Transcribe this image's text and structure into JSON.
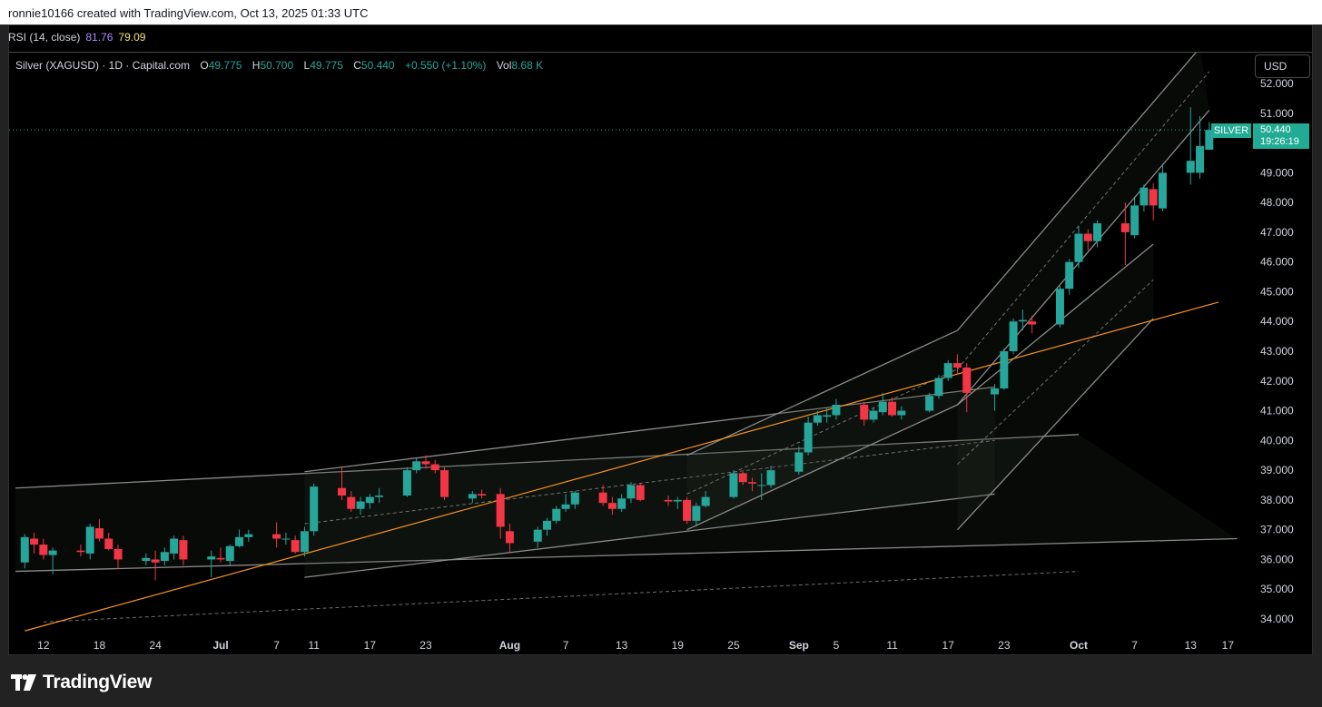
{
  "header": {
    "credit": "ronnie10166 created with TradingView.com, Oct 13, 2025 01:33 UTC"
  },
  "rsi": {
    "label": "RSI (14, close)",
    "value1": "81.76",
    "value2": "79.09",
    "value1_color": "#b388ff",
    "value2_color": "#f7e36b"
  },
  "legend": {
    "symbol": "Silver (XAGUSD) · 1D · Capital.com",
    "o_label": "O",
    "o_value": "49.775",
    "h_label": "H",
    "h_value": "50.700",
    "l_label": "L",
    "l_value": "49.775",
    "c_label": "C",
    "c_value": "50.440",
    "change": "+0.550 (+1.10%)",
    "vol_label": "Vol",
    "vol_value": "8.68 K"
  },
  "currency_button": "USD",
  "price_tag": {
    "name": "SILVER",
    "price": "50.440",
    "countdown": "19:26:19",
    "color": "#22ab94"
  },
  "footer": {
    "brand": "TradingView"
  },
  "colors": {
    "up": "#26a69a",
    "down": "#f23645",
    "trendline": "#f7931a",
    "channel": "#8a8a8a",
    "background": "#000000"
  },
  "chart_data": {
    "type": "candlestick",
    "title": "Silver (XAGUSD) · 1D · Capital.com",
    "ylim": [
      33.6,
      53.1
    ],
    "y_ticks": [
      "52.000",
      "51.000",
      "50.000",
      "49.000",
      "48.000",
      "47.000",
      "46.000",
      "45.000",
      "44.000",
      "43.000",
      "42.000",
      "41.000",
      "40.000",
      "39.000",
      "38.000",
      "37.000",
      "36.000",
      "35.000",
      "34.000"
    ],
    "x_ticks": [
      "12",
      "18",
      "24",
      "Jul",
      "7",
      "11",
      "17",
      "23",
      "Aug",
      "7",
      "13",
      "19",
      "25",
      "Sep",
      "5",
      "11",
      "17",
      "23",
      "Oct",
      "7",
      "13",
      "17"
    ],
    "x_tick_dates": [
      "2025-06-12",
      "2025-06-18",
      "2025-06-24",
      "2025-07-01",
      "2025-07-07",
      "2025-07-11",
      "2025-07-17",
      "2025-07-23",
      "2025-08-01",
      "2025-08-07",
      "2025-08-13",
      "2025-08-19",
      "2025-08-25",
      "2025-09-01",
      "2025-09-05",
      "2025-09-11",
      "2025-09-17",
      "2025-09-23",
      "2025-10-01",
      "2025-10-07",
      "2025-10-13",
      "2025-10-17"
    ],
    "candles": [
      {
        "date": "2025-06-10",
        "o": 35.9,
        "h": 36.85,
        "l": 35.7,
        "c": 36.75
      },
      {
        "date": "2025-06-11",
        "o": 36.7,
        "h": 36.9,
        "l": 36.2,
        "c": 36.5
      },
      {
        "date": "2025-06-12",
        "o": 36.5,
        "h": 36.7,
        "l": 36.0,
        "c": 36.15
      },
      {
        "date": "2025-06-13",
        "o": 36.15,
        "h": 36.4,
        "l": 35.5,
        "c": 36.3
      },
      {
        "date": "2025-06-16",
        "o": 36.3,
        "h": 36.5,
        "l": 36.1,
        "c": 36.25
      },
      {
        "date": "2025-06-17",
        "o": 36.2,
        "h": 37.2,
        "l": 36.0,
        "c": 37.1
      },
      {
        "date": "2025-06-18",
        "o": 37.05,
        "h": 37.35,
        "l": 36.6,
        "c": 36.7
      },
      {
        "date": "2025-06-19",
        "o": 36.7,
        "h": 36.9,
        "l": 36.3,
        "c": 36.35
      },
      {
        "date": "2025-06-20",
        "o": 36.35,
        "h": 36.5,
        "l": 35.7,
        "c": 36.0
      },
      {
        "date": "2025-06-23",
        "o": 35.95,
        "h": 36.2,
        "l": 35.8,
        "c": 36.05
      },
      {
        "date": "2025-06-24",
        "o": 36.0,
        "h": 36.3,
        "l": 35.3,
        "c": 35.9
      },
      {
        "date": "2025-06-25",
        "o": 35.95,
        "h": 36.4,
        "l": 35.8,
        "c": 36.25
      },
      {
        "date": "2025-06-26",
        "o": 36.2,
        "h": 36.8,
        "l": 36.0,
        "c": 36.7
      },
      {
        "date": "2025-06-27",
        "o": 36.65,
        "h": 36.8,
        "l": 35.8,
        "c": 36.0
      },
      {
        "date": "2025-06-30",
        "o": 36.0,
        "h": 36.3,
        "l": 35.4,
        "c": 36.1
      },
      {
        "date": "2025-07-01",
        "o": 36.05,
        "h": 36.4,
        "l": 35.9,
        "c": 36.0
      },
      {
        "date": "2025-07-02",
        "o": 35.95,
        "h": 36.5,
        "l": 35.8,
        "c": 36.45
      },
      {
        "date": "2025-07-03",
        "o": 36.45,
        "h": 37.0,
        "l": 36.4,
        "c": 36.75
      },
      {
        "date": "2025-07-04",
        "o": 36.75,
        "h": 37.0,
        "l": 36.6,
        "c": 36.85
      },
      {
        "date": "2025-07-07",
        "o": 36.85,
        "h": 37.25,
        "l": 36.4,
        "c": 36.7
      },
      {
        "date": "2025-07-08",
        "o": 36.7,
        "h": 36.9,
        "l": 36.5,
        "c": 36.7
      },
      {
        "date": "2025-07-09",
        "o": 36.65,
        "h": 36.8,
        "l": 36.2,
        "c": 36.25
      },
      {
        "date": "2025-07-10",
        "o": 36.25,
        "h": 37.1,
        "l": 36.1,
        "c": 36.95
      },
      {
        "date": "2025-07-11",
        "o": 36.95,
        "h": 38.55,
        "l": 36.8,
        "c": 38.45
      },
      {
        "date": "2025-07-14",
        "o": 38.4,
        "h": 39.1,
        "l": 38.0,
        "c": 38.15
      },
      {
        "date": "2025-07-15",
        "o": 38.1,
        "h": 38.3,
        "l": 37.6,
        "c": 37.7
      },
      {
        "date": "2025-07-16",
        "o": 37.7,
        "h": 38.1,
        "l": 37.5,
        "c": 37.95
      },
      {
        "date": "2025-07-17",
        "o": 37.9,
        "h": 38.2,
        "l": 37.7,
        "c": 38.1
      },
      {
        "date": "2025-07-18",
        "o": 38.1,
        "h": 38.4,
        "l": 37.9,
        "c": 38.15
      },
      {
        "date": "2025-07-21",
        "o": 38.15,
        "h": 39.1,
        "l": 38.1,
        "c": 39.0
      },
      {
        "date": "2025-07-22",
        "o": 39.0,
        "h": 39.4,
        "l": 38.9,
        "c": 39.3
      },
      {
        "date": "2025-07-23",
        "o": 39.3,
        "h": 39.5,
        "l": 39.05,
        "c": 39.2
      },
      {
        "date": "2025-07-24",
        "o": 39.2,
        "h": 39.35,
        "l": 38.9,
        "c": 39.0
      },
      {
        "date": "2025-07-25",
        "o": 39.0,
        "h": 39.1,
        "l": 38.0,
        "c": 38.1
      },
      {
        "date": "2025-07-28",
        "o": 38.05,
        "h": 38.3,
        "l": 37.9,
        "c": 38.2
      },
      {
        "date": "2025-07-29",
        "o": 38.2,
        "h": 38.35,
        "l": 38.05,
        "c": 38.15
      },
      {
        "date": "2025-07-31",
        "o": 38.2,
        "h": 38.4,
        "l": 36.7,
        "c": 37.1
      },
      {
        "date": "2025-08-01",
        "o": 36.95,
        "h": 37.2,
        "l": 36.25,
        "c": 36.55
      },
      {
        "date": "2025-08-04",
        "o": 36.6,
        "h": 37.1,
        "l": 36.4,
        "c": 37.0
      },
      {
        "date": "2025-08-05",
        "o": 37.0,
        "h": 37.4,
        "l": 36.8,
        "c": 37.3
      },
      {
        "date": "2025-08-06",
        "o": 37.3,
        "h": 37.8,
        "l": 37.2,
        "c": 37.7
      },
      {
        "date": "2025-08-07",
        "o": 37.7,
        "h": 38.2,
        "l": 37.6,
        "c": 37.85
      },
      {
        "date": "2025-08-08",
        "o": 37.85,
        "h": 38.3,
        "l": 37.7,
        "c": 38.25
      },
      {
        "date": "2025-08-11",
        "o": 38.25,
        "h": 38.5,
        "l": 37.8,
        "c": 37.9
      },
      {
        "date": "2025-08-12",
        "o": 37.9,
        "h": 38.1,
        "l": 37.5,
        "c": 37.7
      },
      {
        "date": "2025-08-13",
        "o": 37.7,
        "h": 38.2,
        "l": 37.6,
        "c": 38.05
      },
      {
        "date": "2025-08-14",
        "o": 38.05,
        "h": 38.6,
        "l": 37.9,
        "c": 38.5
      },
      {
        "date": "2025-08-15",
        "o": 38.5,
        "h": 38.55,
        "l": 37.95,
        "c": 38.0
      },
      {
        "date": "2025-08-18",
        "o": 38.0,
        "h": 38.15,
        "l": 37.8,
        "c": 37.95
      },
      {
        "date": "2025-08-19",
        "o": 37.95,
        "h": 38.1,
        "l": 37.7,
        "c": 38.0
      },
      {
        "date": "2025-08-20",
        "o": 38.0,
        "h": 38.1,
        "l": 37.2,
        "c": 37.3
      },
      {
        "date": "2025-08-21",
        "o": 37.3,
        "h": 37.9,
        "l": 37.1,
        "c": 37.8
      },
      {
        "date": "2025-08-22",
        "o": 37.8,
        "h": 38.3,
        "l": 37.75,
        "c": 38.1
      },
      {
        "date": "2025-08-25",
        "o": 38.1,
        "h": 39.0,
        "l": 38.05,
        "c": 38.9
      },
      {
        "date": "2025-08-26",
        "o": 38.9,
        "h": 38.95,
        "l": 38.5,
        "c": 38.6
      },
      {
        "date": "2025-08-27",
        "o": 38.6,
        "h": 38.75,
        "l": 38.3,
        "c": 38.55
      },
      {
        "date": "2025-08-28",
        "o": 38.5,
        "h": 38.9,
        "l": 38.0,
        "c": 38.5
      },
      {
        "date": "2025-08-29",
        "o": 38.5,
        "h": 39.15,
        "l": 38.4,
        "c": 39.0
      },
      {
        "date": "2025-09-01",
        "o": 38.95,
        "h": 39.8,
        "l": 38.85,
        "c": 39.6
      },
      {
        "date": "2025-09-02",
        "o": 39.6,
        "h": 40.8,
        "l": 39.5,
        "c": 40.6
      },
      {
        "date": "2025-09-03",
        "o": 40.6,
        "h": 41.0,
        "l": 40.5,
        "c": 40.85
      },
      {
        "date": "2025-09-04",
        "o": 40.8,
        "h": 41.1,
        "l": 40.6,
        "c": 40.85
      },
      {
        "date": "2025-09-05",
        "o": 40.85,
        "h": 41.4,
        "l": 40.7,
        "c": 41.2
      },
      {
        "date": "2025-09-08",
        "o": 41.2,
        "h": 41.3,
        "l": 40.5,
        "c": 40.7
      },
      {
        "date": "2025-09-09",
        "o": 40.7,
        "h": 41.1,
        "l": 40.6,
        "c": 41.0
      },
      {
        "date": "2025-09-10",
        "o": 40.95,
        "h": 41.6,
        "l": 40.85,
        "c": 41.3
      },
      {
        "date": "2025-09-11",
        "o": 41.3,
        "h": 41.45,
        "l": 40.8,
        "c": 40.85
      },
      {
        "date": "2025-09-12",
        "o": 40.85,
        "h": 41.15,
        "l": 40.7,
        "c": 41.0
      },
      {
        "date": "2025-09-15",
        "o": 41.0,
        "h": 41.6,
        "l": 40.95,
        "c": 41.5
      },
      {
        "date": "2025-09-16",
        "o": 41.5,
        "h": 42.2,
        "l": 41.4,
        "c": 42.1
      },
      {
        "date": "2025-09-17",
        "o": 42.1,
        "h": 42.7,
        "l": 42.0,
        "c": 42.6
      },
      {
        "date": "2025-09-18",
        "o": 42.6,
        "h": 42.9,
        "l": 42.2,
        "c": 42.45
      },
      {
        "date": "2025-09-19",
        "o": 42.45,
        "h": 42.6,
        "l": 40.95,
        "c": 41.6
      },
      {
        "date": "2025-09-22",
        "o": 41.55,
        "h": 41.9,
        "l": 41.0,
        "c": 41.75
      },
      {
        "date": "2025-09-23",
        "o": 41.75,
        "h": 43.1,
        "l": 41.7,
        "c": 43.0
      },
      {
        "date": "2025-09-24",
        "o": 43.0,
        "h": 44.1,
        "l": 42.9,
        "c": 44.0
      },
      {
        "date": "2025-09-25",
        "o": 44.0,
        "h": 44.4,
        "l": 43.7,
        "c": 44.05
      },
      {
        "date": "2025-09-26",
        "o": 44.0,
        "h": 44.2,
        "l": 43.6,
        "c": 43.9
      },
      {
        "date": "2025-09-29",
        "o": 43.9,
        "h": 45.2,
        "l": 43.8,
        "c": 45.1
      },
      {
        "date": "2025-09-30",
        "o": 45.1,
        "h": 46.1,
        "l": 44.9,
        "c": 46.0
      },
      {
        "date": "2025-10-01",
        "o": 46.0,
        "h": 47.2,
        "l": 45.8,
        "c": 46.95
      },
      {
        "date": "2025-10-02",
        "o": 46.95,
        "h": 47.1,
        "l": 46.4,
        "c": 46.7
      },
      {
        "date": "2025-10-03",
        "o": 46.7,
        "h": 47.4,
        "l": 46.5,
        "c": 47.3
      },
      {
        "date": "2025-10-06",
        "o": 47.3,
        "h": 48.0,
        "l": 45.9,
        "c": 47.0
      },
      {
        "date": "2025-10-07",
        "o": 46.9,
        "h": 48.2,
        "l": 46.8,
        "c": 47.9
      },
      {
        "date": "2025-10-08",
        "o": 47.9,
        "h": 48.6,
        "l": 47.7,
        "c": 48.5
      },
      {
        "date": "2025-10-09",
        "o": 48.45,
        "h": 48.65,
        "l": 47.4,
        "c": 47.9
      },
      {
        "date": "2025-10-10",
        "o": 47.8,
        "h": 49.3,
        "l": 47.7,
        "c": 49.0
      },
      {
        "date": "2025-10-13",
        "o": 49.0,
        "h": 51.2,
        "l": 48.6,
        "c": 49.4
      },
      {
        "date": "2025-10-14",
        "o": 49.0,
        "h": 50.9,
        "l": 48.8,
        "c": 49.9
      },
      {
        "date": "2025-10-15",
        "o": 49.775,
        "h": 50.7,
        "l": 49.775,
        "c": 50.44
      }
    ]
  }
}
